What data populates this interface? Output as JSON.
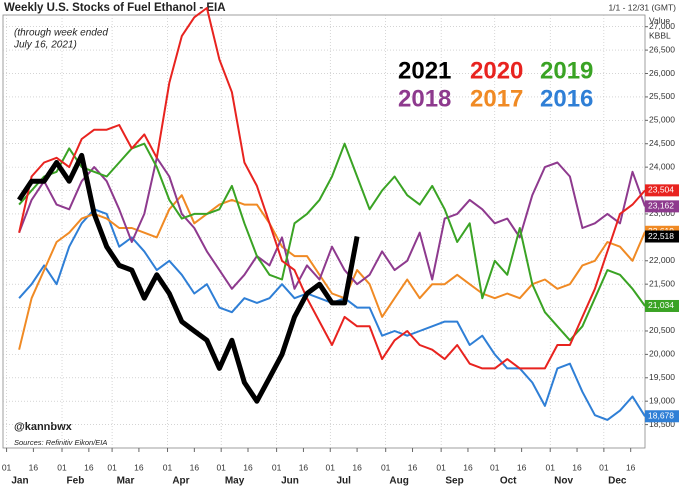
{
  "chart_data": {
    "type": "line",
    "title": "Weekly U.S. Stocks of Fuel Ethanol - EIA",
    "date_range": "1/1 - 12/31 (GMT)",
    "y_label": [
      "Value",
      "KBBL"
    ],
    "annotation": [
      "(through week ended",
      "July 16, 2021)"
    ],
    "handle": "@kannbwx",
    "source": "Sources: Refinitiv Eikon/EIA",
    "xlim": [
      -2,
      357
    ],
    "ylim": [
      18000,
      27250
    ],
    "months": [
      "Jan",
      "Feb",
      "Mar",
      "Apr",
      "May",
      "Jun",
      "Jul",
      "Aug",
      "Sep",
      "Oct",
      "Nov",
      "Dec"
    ],
    "xticks": [
      {
        "value": 0,
        "label": "01"
      },
      {
        "value": 15,
        "label": "16"
      },
      {
        "value": 31,
        "label": "01"
      },
      {
        "value": 46,
        "label": "16"
      },
      {
        "value": 59,
        "label": "01"
      },
      {
        "value": 74,
        "label": "16"
      },
      {
        "value": 90,
        "label": "01"
      },
      {
        "value": 105,
        "label": "16"
      },
      {
        "value": 120,
        "label": "01"
      },
      {
        "value": 135,
        "label": "16"
      },
      {
        "value": 151,
        "label": "01"
      },
      {
        "value": 166,
        "label": "16"
      },
      {
        "value": 181,
        "label": "01"
      },
      {
        "value": 196,
        "label": "16"
      },
      {
        "value": 212,
        "label": "01"
      },
      {
        "value": 227,
        "label": "16"
      },
      {
        "value": 243,
        "label": "01"
      },
      {
        "value": 258,
        "label": "16"
      },
      {
        "value": 273,
        "label": "01"
      },
      {
        "value": 288,
        "label": "16"
      },
      {
        "value": 304,
        "label": "01"
      },
      {
        "value": 319,
        "label": "16"
      },
      {
        "value": 334,
        "label": "01"
      },
      {
        "value": 349,
        "label": "16"
      }
    ],
    "yticks": [
      {
        "value": 18500,
        "label": "18,500"
      },
      {
        "value": 19000,
        "label": "19,000"
      },
      {
        "value": 19500,
        "label": "19,500"
      },
      {
        "value": 20000,
        "label": "20,000"
      },
      {
        "value": 20500,
        "label": "20,500"
      },
      {
        "value": 21000,
        "label": "21,000"
      },
      {
        "value": 21500,
        "label": "21,500"
      },
      {
        "value": 22000,
        "label": "22,000"
      },
      {
        "value": 22500,
        "label": "22,500"
      },
      {
        "value": 23000,
        "label": "23,000"
      },
      {
        "value": 23500,
        "label": "23,500"
      },
      {
        "value": 24000,
        "label": "24,000"
      },
      {
        "value": 24500,
        "label": "24,500"
      },
      {
        "value": 25000,
        "label": "25,000"
      },
      {
        "value": 25500,
        "label": "25,500"
      },
      {
        "value": 26000,
        "label": "26,000"
      },
      {
        "value": 26500,
        "label": "26,500"
      },
      {
        "value": 27000,
        "label": "27,000"
      }
    ],
    "grid": true,
    "series": [
      {
        "name": "2021",
        "color": "#000000",
        "end_label": "22,518",
        "values": [
          23300,
          23700,
          23700,
          24100,
          23700,
          24250,
          23000,
          22300,
          21900,
          21800,
          21200,
          21700,
          21300,
          20700,
          20500,
          20300,
          19700,
          20300,
          19400,
          19000,
          19500,
          20000,
          20800,
          21300,
          21500,
          21100,
          21100,
          22518
        ]
      },
      {
        "name": "2020",
        "color": "#e8231f",
        "end_label": "23,504",
        "values": [
          22600,
          23800,
          24100,
          24200,
          24000,
          24600,
          24800,
          24800,
          24900,
          24400,
          24700,
          24200,
          25800,
          26800,
          27200,
          27400,
          26300,
          25600,
          24100,
          23600,
          22800,
          22000,
          21800,
          21200,
          20700,
          20200,
          20800,
          20600,
          20600,
          19900,
          20300,
          20500,
          20200,
          20100,
          19900,
          20200,
          19800,
          19700,
          19700,
          19900,
          19700,
          19700,
          19700,
          20200,
          20200,
          20800,
          21400,
          22200,
          23000,
          23200,
          23504
        ]
      },
      {
        "name": "2019",
        "color": "#3aa324",
        "end_label": "21,034",
        "values": [
          23200,
          23500,
          23800,
          23900,
          24400,
          24000,
          23900,
          23800,
          24100,
          24400,
          24500,
          24000,
          23300,
          22900,
          23000,
          23000,
          23100,
          23600,
          22800,
          22100,
          21700,
          21600,
          22800,
          23000,
          23300,
          23800,
          24500,
          23800,
          23100,
          23500,
          23800,
          23400,
          23200,
          23600,
          23100,
          22400,
          22800,
          21200,
          22000,
          21700,
          22700,
          21500,
          20900,
          20600,
          20300,
          20600,
          21200,
          21800,
          21700,
          21400,
          21034
        ]
      },
      {
        "name": "2018",
        "color": "#8e3a8e",
        "end_label": "23,162",
        "values": [
          22600,
          23300,
          23700,
          23200,
          23100,
          23700,
          24000,
          23700,
          23100,
          22400,
          23000,
          24200,
          23800,
          23000,
          22700,
          22200,
          21800,
          21400,
          21700,
          22100,
          21900,
          22500,
          21400,
          21900,
          21600,
          22300,
          21800,
          21500,
          21700,
          22200,
          21800,
          22000,
          22600,
          21600,
          22900,
          23000,
          23300,
          23100,
          22800,
          22900,
          22500,
          23400,
          24000,
          24100,
          23800,
          22700,
          22800,
          23000,
          22800,
          23900,
          23162
        ]
      },
      {
        "name": "2017",
        "color": "#f08a24",
        "end_label": "22,619",
        "values": [
          20100,
          21200,
          21800,
          22400,
          22600,
          22900,
          23000,
          22900,
          22700,
          22700,
          22600,
          22500,
          23100,
          23400,
          22800,
          23000,
          23200,
          23300,
          23200,
          23200,
          22800,
          22300,
          22100,
          22100,
          21700,
          21300,
          21200,
          21800,
          21500,
          20800,
          21200,
          21600,
          21200,
          21500,
          21500,
          21700,
          21500,
          21300,
          21200,
          21300,
          21200,
          21500,
          21600,
          21400,
          21500,
          21900,
          22000,
          22400,
          22300,
          22000,
          22619
        ]
      },
      {
        "name": "2016",
        "color": "#2f7fd6",
        "end_label": "18,678",
        "values": [
          21200,
          21500,
          21900,
          21500,
          22300,
          22800,
          23100,
          23000,
          22300,
          22500,
          22200,
          21800,
          22000,
          21700,
          21300,
          21500,
          21000,
          20900,
          21200,
          21100,
          21200,
          21500,
          21200,
          21300,
          21200,
          21100,
          21200,
          21000,
          21000,
          20400,
          20500,
          20400,
          20500,
          20600,
          20700,
          20700,
          20200,
          20400,
          20000,
          19700,
          19700,
          19400,
          18900,
          19700,
          19800,
          19200,
          18700,
          18600,
          18800,
          19100,
          18678
        ]
      }
    ]
  }
}
